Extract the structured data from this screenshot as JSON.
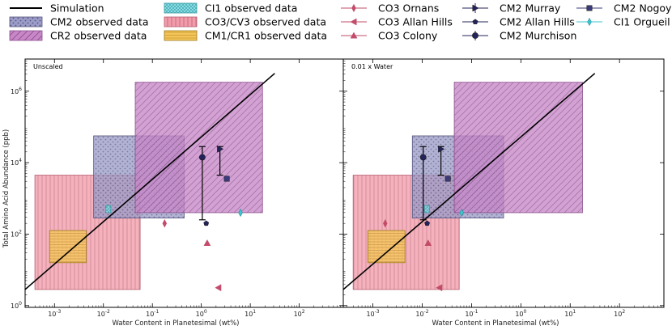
{
  "chart_data": {
    "type": "scatter",
    "xlabel": "Water Content in Planetesimal (wt%)",
    "ylabel": "Total Amino Acid Abundance (ppb)",
    "x_scale": "log",
    "y_scale": "log",
    "xlim_log10": [
      -3.6,
      2.9
    ],
    "ylim_log10": [
      -0.05,
      6.9
    ],
    "x_ticks": [
      {
        "v": -3,
        "base": "10",
        "exp": "-3"
      },
      {
        "v": -2,
        "base": "10",
        "exp": "-2"
      },
      {
        "v": -1,
        "base": "10",
        "exp": "-1"
      },
      {
        "v": 0,
        "base": "10",
        "exp": "0"
      },
      {
        "v": 1,
        "base": "10",
        "exp": "1"
      },
      {
        "v": 2,
        "base": "10",
        "exp": "2"
      }
    ],
    "y_ticks": [
      {
        "v": 0,
        "base": "10",
        "exp": "0"
      },
      {
        "v": 2,
        "base": "10",
        "exp": "2"
      },
      {
        "v": 4,
        "base": "10",
        "exp": "4"
      },
      {
        "v": 6,
        "base": "10",
        "exp": "6"
      }
    ],
    "legend": [
      "Simulation",
      "CM2 observed data",
      "CR2 observed data",
      "CI1 observed data",
      "CO3/CV3 observed data",
      "CM1/CR1 observed data",
      "CO3 Ornans",
      "CO3 Allan Hills",
      "CO3 Colony",
      "CM2 Murray",
      "CM2 Allan Hills",
      "CM2 Murchison",
      "CM2 Nogoya",
      "CI1 Orgueil"
    ],
    "regions": [
      {
        "name": "CO3/CV3 observed data",
        "x": [
          -3.4,
          -1.25
        ],
        "y": [
          0.45,
          3.65
        ],
        "color": "#f29cab",
        "pattern": "vlines"
      },
      {
        "name": "CM2 observed data",
        "x": [
          -2.2,
          -0.35
        ],
        "y": [
          2.45,
          4.75
        ],
        "color": "#9c9cc8",
        "pattern": "dots"
      },
      {
        "name": "CR2 observed data",
        "x": [
          -1.35,
          1.25
        ],
        "y": [
          2.6,
          6.25
        ],
        "color": "#c887c8",
        "pattern": "diag"
      },
      {
        "name": "CM1/CR1 observed data",
        "x": [
          -3.1,
          -2.35
        ],
        "y": [
          1.2,
          2.1
        ],
        "color": "#f5c657",
        "pattern": "hlines"
      },
      {
        "name": "CI1 observed data",
        "x": [
          -1.95,
          -1.85
        ],
        "y": [
          2.6,
          2.8
        ],
        "color": "#8be3ea",
        "pattern": "cross"
      }
    ],
    "line": {
      "name": "Simulation",
      "x": [
        -3.6,
        1.5
      ],
      "y": [
        0.45,
        6.5
      ]
    },
    "panels": [
      {
        "title": "Unscaled",
        "points": [
          {
            "name": "CO3 Ornans",
            "x": -0.75,
            "y": 2.3,
            "marker": "thin_diamond",
            "color": "#c24c6a"
          },
          {
            "name": "CO3 Allan Hills",
            "x": 0.35,
            "y": 0.5,
            "marker": "triangle_left",
            "color": "#c24c6a"
          },
          {
            "name": "CO3 Colony",
            "x": 0.12,
            "y": 1.75,
            "marker": "triangle_up",
            "color": "#c24c6a"
          },
          {
            "name": "CM2 Murray",
            "x": 0.38,
            "y": 4.38,
            "yerr": [
              3.65,
              4.45
            ],
            "marker": "triangle_right",
            "color": "#24245c"
          },
          {
            "name": "CM2 Allan Hills",
            "x": 0.1,
            "y": 2.3,
            "marker": "pentagon",
            "color": "#24245c"
          },
          {
            "name": "CM2 Murchison",
            "x": 0.02,
            "y": 4.15,
            "yerr": [
              2.4,
              4.45
            ],
            "marker": "circle",
            "color": "#24245c"
          },
          {
            "name": "CM2 Nogoya",
            "x": 0.52,
            "y": 3.55,
            "marker": "square",
            "color": "#3b3b7c"
          },
          {
            "name": "CI1 Orgueil",
            "x": 0.8,
            "y": 2.6,
            "marker": "thin_diamond",
            "color": "#3cc6d2"
          }
        ]
      },
      {
        "title": "0.01 x Water",
        "points": [
          {
            "name": "CO3 Ornans",
            "x": -2.75,
            "y": 2.3,
            "marker": "thin_diamond",
            "color": "#c24c6a"
          },
          {
            "name": "CO3 Allan Hills",
            "x": -1.65,
            "y": 0.5,
            "marker": "triangle_left",
            "color": "#c24c6a"
          },
          {
            "name": "CO3 Colony",
            "x": -1.88,
            "y": 1.75,
            "marker": "triangle_up",
            "color": "#c24c6a"
          },
          {
            "name": "CM2 Murray",
            "x": -1.62,
            "y": 4.38,
            "yerr": [
              3.65,
              4.45
            ],
            "marker": "triangle_right",
            "color": "#24245c"
          },
          {
            "name": "CM2 Allan Hills",
            "x": -1.9,
            "y": 2.3,
            "marker": "pentagon",
            "color": "#24245c"
          },
          {
            "name": "CM2 Murchison",
            "x": -1.98,
            "y": 4.15,
            "yerr": [
              2.4,
              4.45
            ],
            "marker": "circle",
            "color": "#24245c"
          },
          {
            "name": "CM2 Nogoya",
            "x": -1.48,
            "y": 3.55,
            "marker": "square",
            "color": "#3b3b7c"
          },
          {
            "name": "CI1 Orgueil",
            "x": -1.2,
            "y": 2.6,
            "marker": "thin_diamond",
            "color": "#3cc6d2"
          }
        ]
      }
    ]
  }
}
